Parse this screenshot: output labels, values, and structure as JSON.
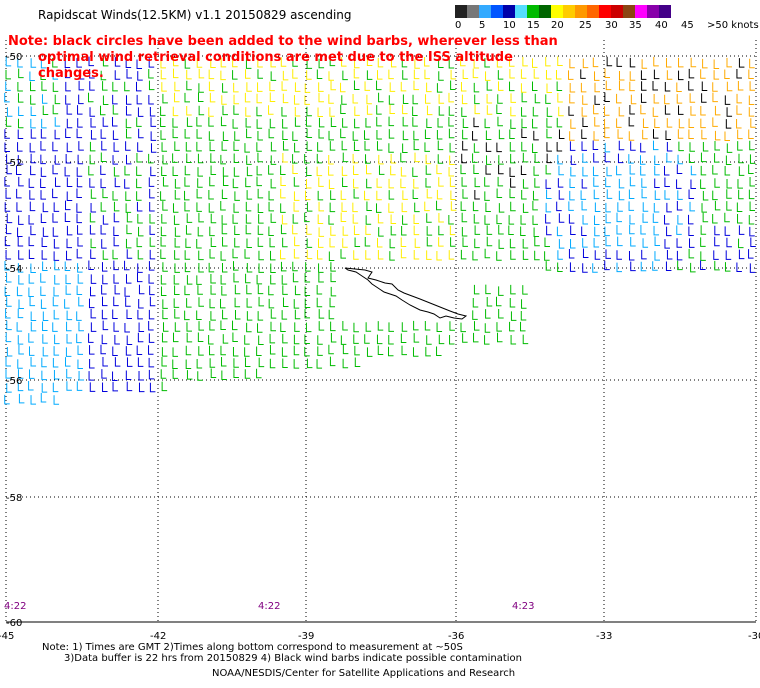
{
  "title": "Rapidscat Winds(12.5KM) v1.1 20150829 ascending",
  "note": {
    "line1": "Note: black circles have been added to the wind barbs, wherever less than",
    "line2": "optimal wind retrieval conditions are met due to the ISS altitude changes."
  },
  "legend": {
    "labels": [
      "0",
      "5",
      "10",
      "15",
      "20",
      "25",
      "30",
      "35",
      "40",
      "45",
      ">50 knots"
    ],
    "colors": [
      "#222222",
      "#777777",
      "#33aaff",
      "#0055ff",
      "#0000aa",
      "#55ddff",
      "#00bb00",
      "#006600",
      "#ffff00",
      "#ffcc00",
      "#ff9900",
      "#ff6600",
      "#ff0000",
      "#cc0000",
      "#8b4513",
      "#ff00ff",
      "#8800aa",
      "#440088"
    ]
  },
  "axes": {
    "x_ticks": [
      "-45",
      "-42",
      "-39",
      "-36",
      "-33",
      "-30"
    ],
    "y_ticks": [
      "-50",
      "-52",
      "-54",
      "-56",
      "-58",
      "-60"
    ]
  },
  "times": [
    "4:22",
    "4:22",
    "4:23"
  ],
  "footer": {
    "line1": "Note: 1) Times are GMT 2)Times along bottom correspond to measurement at ~50S",
    "line2": "3)Data buffer is 22 hrs from 20150829 4) Black wind barbs indicate possible contamination",
    "line3": "NOAA/NESDIS/Center for Satellite Applications and Research"
  },
  "wind_colors": {
    "blue": "#0000dd",
    "lightblue": "#00aaff",
    "green": "#00bb00",
    "yellow": "#ffee00",
    "orange": "#ffaa00",
    "black": "#000000"
  }
}
